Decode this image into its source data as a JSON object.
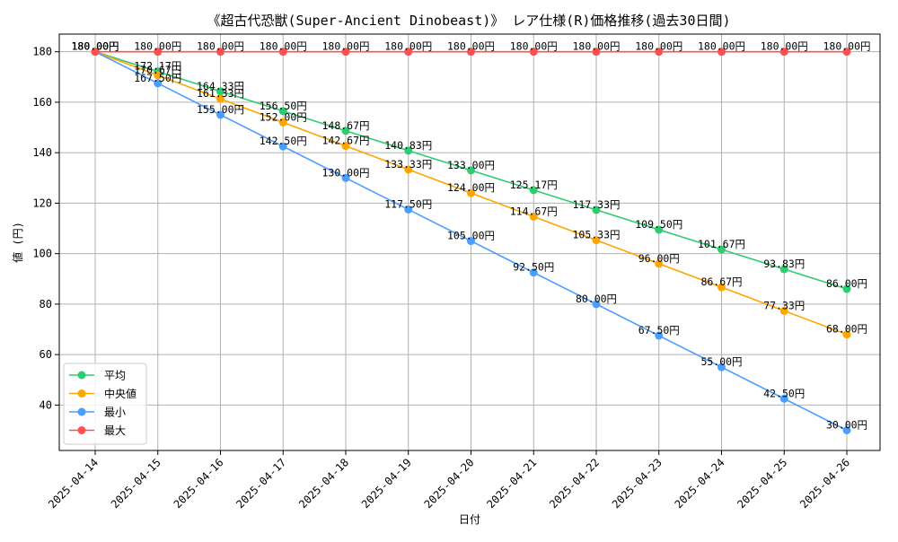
{
  "chart_data": {
    "type": "line",
    "title": "《超古代恐獣(Super-Ancient Dinobeast)》 レア仕様(R)価格推移(過去30日間)",
    "xlabel": "日付",
    "ylabel": "値 (円)",
    "ylim": [
      22,
      187
    ],
    "yticks": [
      40,
      60,
      80,
      100,
      120,
      140,
      160,
      180
    ],
    "grid": true,
    "legend_position": "lower-left",
    "value_suffix": "円",
    "categories": [
      "2025-04-14",
      "2025-04-15",
      "2025-04-16",
      "2025-04-17",
      "2025-04-18",
      "2025-04-19",
      "2025-04-20",
      "2025-04-21",
      "2025-04-22",
      "2025-04-23",
      "2025-04-24",
      "2025-04-25",
      "2025-04-26"
    ],
    "series": [
      {
        "name": "平均",
        "color": "#2ecc71",
        "values": [
          180.0,
          172.17,
          164.33,
          156.5,
          148.67,
          140.83,
          133.0,
          125.17,
          117.33,
          109.5,
          101.67,
          93.83,
          86.0
        ],
        "labels": [
          "180.00円",
          "172.17円",
          "164.33円",
          "156.50円",
          "148.67円",
          "140.83円",
          "133.00円",
          "125.17円",
          "117.33円",
          "109.50円",
          "101.67円",
          "93.83円",
          "86.00円"
        ]
      },
      {
        "name": "中央値",
        "color": "#ffa500",
        "values": [
          180.0,
          170.67,
          161.33,
          152.0,
          142.67,
          133.33,
          124.0,
          114.67,
          105.33,
          96.0,
          86.67,
          77.33,
          68.0
        ],
        "labels": [
          "180.00円",
          "170.67円",
          "161.33円",
          "152.00円",
          "142.67円",
          "133.33円",
          "124.00円",
          "114.67円",
          "105.33円",
          "96.00円",
          "86.67円",
          "77.33円",
          "68.00円"
        ]
      },
      {
        "name": "最小",
        "color": "#4a9eff",
        "values": [
          180.0,
          167.5,
          155.0,
          142.5,
          130.0,
          117.5,
          105.0,
          92.5,
          80.0,
          67.5,
          55.0,
          42.5,
          30.0
        ],
        "labels": [
          "180.00円",
          "167.50円",
          "155.00円",
          "142.50円",
          "130.00円",
          "117.50円",
          "105.00円",
          "92.50円",
          "80.00円",
          "67.50円",
          "55.00円",
          "42.50円",
          "30.00円"
        ]
      },
      {
        "name": "最大",
        "color": "#ff5050",
        "values": [
          180.0,
          180.0,
          180.0,
          180.0,
          180.0,
          180.0,
          180.0,
          180.0,
          180.0,
          180.0,
          180.0,
          180.0,
          180.0
        ],
        "labels": [
          "180.00円",
          "180.00円",
          "180.00円",
          "180.00円",
          "180.00円",
          "180.00円",
          "180.00円",
          "180.00円",
          "180.00円",
          "180.00円",
          "180.00円",
          "180.00円",
          "180.00円"
        ]
      }
    ]
  }
}
